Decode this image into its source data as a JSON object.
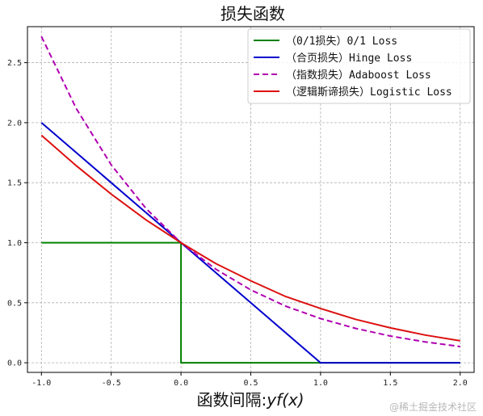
{
  "chart_data": {
    "type": "line",
    "title": "损失函数",
    "xlabel": "函数间隔:yf(x)",
    "xlabel_main": "函数间隔:",
    "xlabel_math": "yf(x)",
    "ylabel": "",
    "xlim": [
      -1.1,
      2.1
    ],
    "ylim": [
      -0.08,
      2.8
    ],
    "xticks": [
      -1.0,
      -0.5,
      0.0,
      0.5,
      1.0,
      1.5,
      2.0
    ],
    "xtick_labels": [
      "-1.0",
      "-0.5",
      "0.0",
      "0.5",
      "1.0",
      "1.5",
      "2.0"
    ],
    "yticks": [
      0.0,
      0.5,
      1.0,
      1.5,
      2.0,
      2.5
    ],
    "ytick_labels": [
      "0.0",
      "0.5",
      "1.0",
      "1.5",
      "2.0",
      "2.5"
    ],
    "grid": true,
    "legend_position": "top-right",
    "series": [
      {
        "name": "（0/1损失）0/1 Loss",
        "color": "#008000",
        "dash": "solid",
        "x": [
          -1.0,
          0.0,
          0.0,
          2.0
        ],
        "y": [
          1.0,
          1.0,
          0.0,
          0.0
        ]
      },
      {
        "name": "（合页损失）Hinge Loss",
        "color": "#0000cd",
        "dash": "solid",
        "x": [
          -1.0,
          1.0,
          2.0
        ],
        "y": [
          2.0,
          0.0,
          0.0
        ]
      },
      {
        "name": "（指数损失）Adaboost Loss",
        "color": "#b000b0",
        "dash": "dashed",
        "x": [
          -1.0,
          -0.75,
          -0.5,
          -0.25,
          0.0,
          0.25,
          0.5,
          0.75,
          1.0,
          1.25,
          1.5,
          1.75,
          2.0
        ],
        "y": [
          2.718,
          2.117,
          1.649,
          1.284,
          1.0,
          0.779,
          0.607,
          0.472,
          0.368,
          0.287,
          0.223,
          0.174,
          0.135
        ]
      },
      {
        "name": "（逻辑斯谛损失）Logistic Loss",
        "color": "#dd1111",
        "dash": "solid",
        "x": [
          -1.0,
          -0.75,
          -0.5,
          -0.25,
          0.0,
          0.25,
          0.5,
          0.75,
          1.0,
          1.25,
          1.5,
          1.75,
          2.0
        ],
        "y": [
          1.895,
          1.641,
          1.405,
          1.19,
          1.0,
          0.826,
          0.683,
          0.552,
          0.452,
          0.362,
          0.291,
          0.231,
          0.183
        ]
      }
    ]
  },
  "watermark": "@稀土掘金技术社区"
}
